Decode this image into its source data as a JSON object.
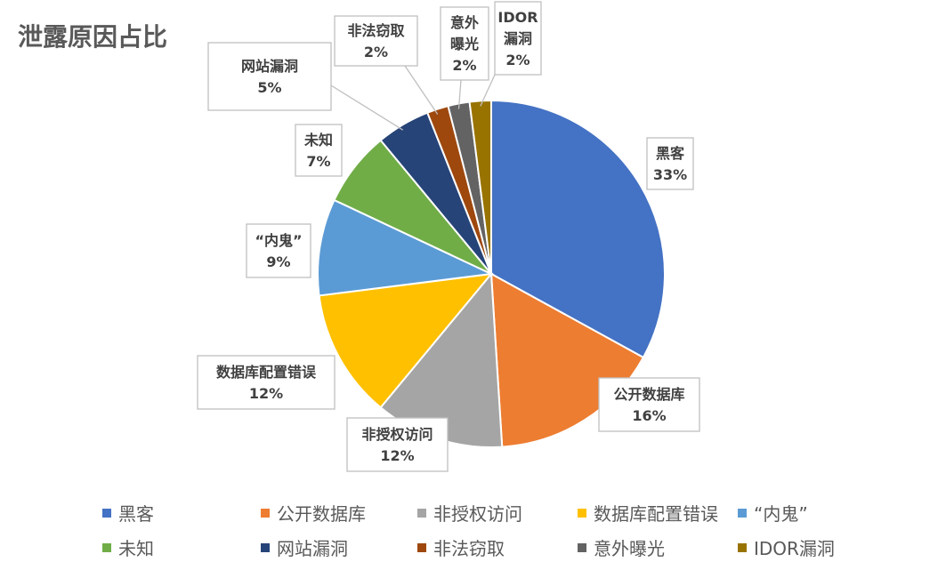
{
  "chart_data": {
    "type": "pie",
    "title": "泄露原因占比",
    "slices": [
      {
        "name": "黑客",
        "label": "黑客",
        "value": 33,
        "pct_label": "33%",
        "color": "#4472C4"
      },
      {
        "name": "公开数据库",
        "label": "公开数据库",
        "value": 16,
        "pct_label": "16%",
        "color": "#ED7D31"
      },
      {
        "name": "非授权访问",
        "label": "非授权访问",
        "value": 12,
        "pct_label": "12%",
        "color": "#A5A5A5"
      },
      {
        "name": "数据库配置错误",
        "label": "数据库配置错误",
        "value": 12,
        "pct_label": "12%",
        "color": "#FFC000"
      },
      {
        "name": "“内鬼”",
        "label": "“内鬼”",
        "value": 9,
        "pct_label": "9%",
        "color": "#5B9BD5"
      },
      {
        "name": "未知",
        "label": "未知",
        "value": 7,
        "pct_label": "7%",
        "color": "#70AD47"
      },
      {
        "name": "网站漏洞",
        "label": "网站漏洞",
        "value": 5,
        "pct_label": "5%",
        "color": "#264478"
      },
      {
        "name": "非法窃取",
        "label": "非法窃取",
        "value": 2,
        "pct_label": "2%",
        "color": "#9E480E"
      },
      {
        "name": "意外曝光",
        "label": "意外\n曝光",
        "value": 2,
        "pct_label": "2%",
        "color": "#636363"
      },
      {
        "name": "IDOR漏洞",
        "label": "IDOR\n漏洞",
        "value": 2,
        "pct_label": "2%",
        "color": "#997300"
      }
    ],
    "legend_position": "bottom"
  }
}
